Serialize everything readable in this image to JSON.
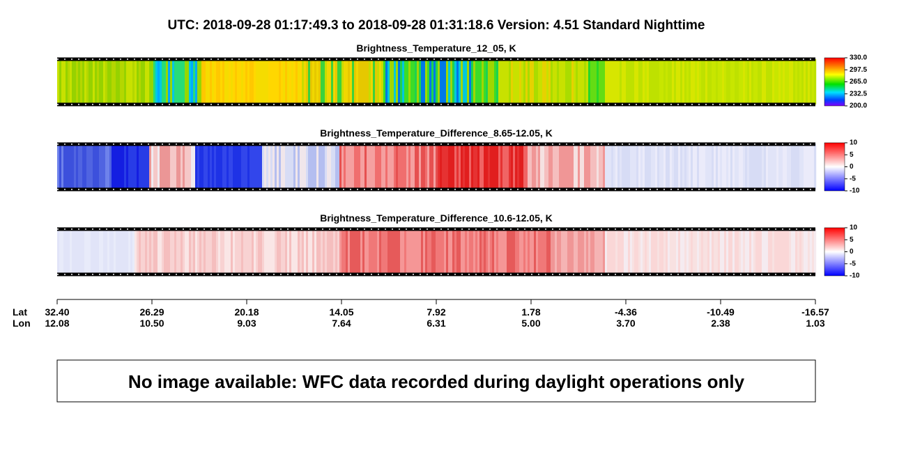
{
  "header": {
    "title": "UTC:  2018-09-28   01:17:49.3  to  2018-09-28   01:31:18.6    Version: 4.51  Standard Nighttime"
  },
  "panels": [
    {
      "title": "Brightness_Temperature_12_05, K",
      "colorbar_ticks": [
        "330.0",
        "297.5",
        "265.0",
        "232.5",
        "200.0"
      ]
    },
    {
      "title": "Brightness_Temperature_Difference_8.65-12.05, K",
      "colorbar_ticks": [
        "10",
        "5",
        "0",
        "-5",
        "-10"
      ]
    },
    {
      "title": "Brightness_Temperature_Difference_10.6-12.05, K",
      "colorbar_ticks": [
        "10",
        "5",
        "0",
        "-5",
        "-10"
      ]
    }
  ],
  "axis": {
    "lat_label": "Lat",
    "lon_label": "Lon",
    "lat": [
      "32.40",
      "26.29",
      "20.18",
      "14.05",
      "7.92",
      "1.78",
      "-4.36",
      "-10.49",
      "-16.57"
    ],
    "lon": [
      "12.08",
      "10.50",
      "9.03",
      "7.64",
      "6.31",
      "5.00",
      "3.70",
      "2.38",
      "1.03"
    ]
  },
  "message": "No image available: WFC data recorded during daylight operations only"
}
